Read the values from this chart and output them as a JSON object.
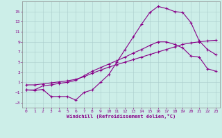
{
  "xlabel": "Windchill (Refroidissement éolien,°C)",
  "x": [
    0,
    1,
    2,
    3,
    4,
    5,
    6,
    7,
    8,
    9,
    10,
    11,
    12,
    13,
    14,
    15,
    16,
    17,
    18,
    19,
    20,
    21,
    22,
    23
  ],
  "line1": [
    0.5,
    0.5,
    0.7,
    0.9,
    1.1,
    1.3,
    1.6,
    2.1,
    2.8,
    3.4,
    4.0,
    4.5,
    5.0,
    5.5,
    6.0,
    6.5,
    7.0,
    7.5,
    8.0,
    8.5,
    8.8,
    9.0,
    9.2,
    9.3
  ],
  "line2": [
    -0.5,
    -0.5,
    0.3,
    0.5,
    0.8,
    1.0,
    1.4,
    2.3,
    3.2,
    3.9,
    4.6,
    5.3,
    6.0,
    6.8,
    7.5,
    8.3,
    9.0,
    9.0,
    8.5,
    7.8,
    6.2,
    6.0,
    3.7,
    3.2
  ],
  "line3": [
    -0.5,
    -0.6,
    -0.4,
    -1.8,
    -1.8,
    -1.8,
    -2.5,
    -1.0,
    -0.5,
    1.0,
    2.5,
    5.0,
    7.5,
    10.0,
    12.5,
    14.8,
    16.0,
    15.6,
    15.0,
    14.8,
    12.8,
    9.2,
    7.5,
    6.5
  ],
  "line_color": "#880088",
  "bg_color": "#cceee8",
  "grid_color": "#aacccc",
  "ylim": [
    -4,
    17
  ],
  "yticks": [
    -3,
    -1,
    1,
    3,
    5,
    7,
    9,
    11,
    13,
    15
  ],
  "xticks": [
    0,
    1,
    2,
    3,
    4,
    5,
    6,
    7,
    8,
    9,
    10,
    11,
    12,
    13,
    14,
    15,
    16,
    17,
    18,
    19,
    20,
    21,
    22,
    23
  ]
}
